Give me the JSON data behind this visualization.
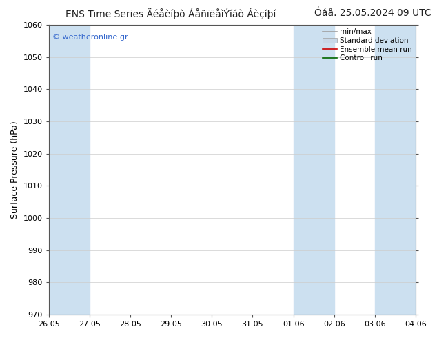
{
  "title_left": "ENS Time Series Äéåèíþò ÁåñïëåìÝíáò Áèçíþí",
  "title_right": "Óáâ. 25.05.2024 09 UTC",
  "ylabel": "Surface Pressure (hPa)",
  "ylim": [
    970,
    1060
  ],
  "yticks": [
    970,
    980,
    990,
    1000,
    1010,
    1020,
    1030,
    1040,
    1050,
    1060
  ],
  "xtick_labels": [
    "26.05",
    "27.05",
    "28.05",
    "29.05",
    "30.05",
    "31.05",
    "01.06",
    "02.06",
    "03.06",
    "04.06"
  ],
  "shade_color": "#cce0f0",
  "background_color": "#ffffff",
  "watermark": "© weatheronline.gr",
  "legend_labels": [
    "min/max",
    "Standard deviation",
    "Ensemble mean run",
    "Controll run"
  ],
  "minmax_color": "#a0a0a0",
  "std_color": "#c8d8e8",
  "ensemble_color": "#cc0000",
  "control_color": "#006600",
  "title_fontsize": 10,
  "axis_label_fontsize": 9,
  "tick_fontsize": 8,
  "legend_fontsize": 7.5,
  "watermark_fontsize": 8,
  "fig_width": 6.34,
  "fig_height": 4.9,
  "dpi": 100
}
